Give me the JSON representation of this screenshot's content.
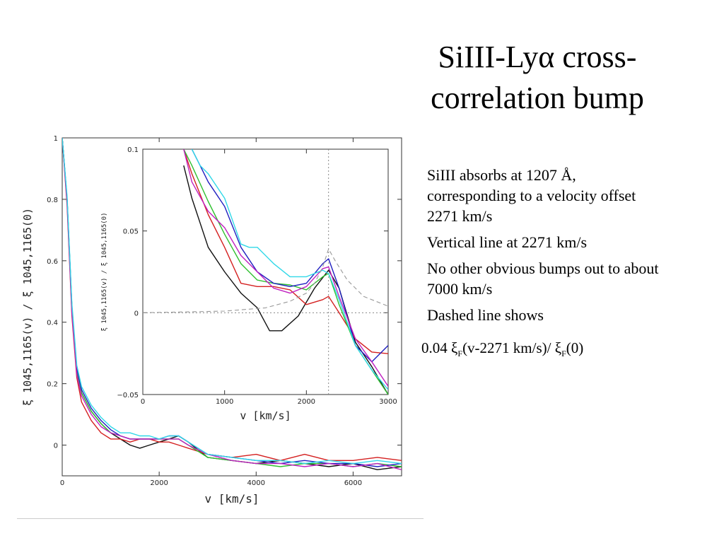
{
  "title_line1": "SiIII-Lyα cross-",
  "title_line2": "correlation bump",
  "bullets": [
    "SiIII absorbs at 1207 Å, corresponding to a velocity offset 2271  km/s",
    "Vertical line at 2271 km/s",
    "No other obvious bumps out to about 7000 km/s",
    "Dashed line shows"
  ],
  "formula": {
    "prefix": "0.04 ξ",
    "sub1": "F",
    "mid": "(v-2271 km/s)/ ξ",
    "sub2": "F",
    "suffix": "(0)"
  },
  "colors": {
    "black": "#111111",
    "red": "#d42020",
    "green": "#30c030",
    "blue": "#2020c0",
    "magenta": "#c020c0",
    "cyan": "#30d8e8",
    "dashed": "#999999"
  },
  "chart_data": [
    {
      "type": "line",
      "panel": "main",
      "xlabel": "v [km/s]",
      "ylabel": "ξ 1045,1165(v)  /  ξ 1045,1165(0)",
      "xlim": [
        0,
        7000
      ],
      "ylim": [
        -0.1,
        1.0
      ],
      "xticks": [
        "0",
        "2000",
        "4000",
        "6000"
      ],
      "yticks": [
        "0",
        "0.2",
        "0.4",
        "0.6",
        "0.8",
        "1"
      ],
      "series": [
        {
          "color": "black",
          "x": [
            0,
            100,
            200,
            300,
            400,
            600,
            800,
            1000,
            1200,
            1400,
            1600,
            1800,
            2000,
            2200,
            2400,
            2600,
            3000,
            3500,
            4000,
            4500,
            5000,
            5500,
            6000,
            6500,
            7000
          ],
          "y": [
            1.0,
            0.8,
            0.45,
            0.25,
            0.17,
            0.11,
            0.07,
            0.04,
            0.02,
            0.0,
            -0.01,
            0.0,
            0.01,
            0.02,
            0.03,
            0.01,
            -0.04,
            -0.05,
            -0.06,
            -0.05,
            -0.06,
            -0.07,
            -0.06,
            -0.08,
            -0.07
          ]
        },
        {
          "color": "red",
          "x": [
            0,
            100,
            200,
            300,
            400,
            600,
            800,
            1000,
            1200,
            1400,
            1600,
            1800,
            2000,
            2200,
            2400,
            2600,
            3000,
            3500,
            4000,
            4500,
            5000,
            5500,
            6000,
            6500,
            7000
          ],
          "y": [
            1.0,
            0.78,
            0.42,
            0.22,
            0.14,
            0.08,
            0.04,
            0.02,
            0.02,
            0.01,
            0.02,
            0.02,
            0.01,
            0.01,
            0.0,
            -0.01,
            -0.03,
            -0.04,
            -0.03,
            -0.05,
            -0.03,
            -0.05,
            -0.05,
            -0.04,
            -0.05
          ]
        },
        {
          "color": "green",
          "x": [
            0,
            100,
            200,
            300,
            400,
            600,
            800,
            1000,
            1200,
            1400,
            1600,
            1800,
            2000,
            2200,
            2400,
            2600,
            3000,
            3500,
            4000,
            4500,
            5000,
            5500,
            6000,
            6500,
            7000
          ],
          "y": [
            1.0,
            0.8,
            0.44,
            0.24,
            0.17,
            0.11,
            0.07,
            0.04,
            0.03,
            0.02,
            0.02,
            0.02,
            0.02,
            0.02,
            0.02,
            0.0,
            -0.04,
            -0.05,
            -0.06,
            -0.07,
            -0.06,
            -0.06,
            -0.07,
            -0.06,
            -0.07
          ]
        },
        {
          "color": "blue",
          "x": [
            0,
            100,
            200,
            300,
            400,
            600,
            800,
            1000,
            1200,
            1400,
            1600,
            1800,
            2000,
            2200,
            2400,
            2600,
            3000,
            3500,
            4000,
            4500,
            5000,
            5500,
            6000,
            6500,
            7000
          ],
          "y": [
            1.0,
            0.8,
            0.45,
            0.25,
            0.18,
            0.12,
            0.08,
            0.05,
            0.03,
            0.02,
            0.02,
            0.02,
            0.02,
            0.03,
            0.03,
            0.01,
            -0.03,
            -0.04,
            -0.05,
            -0.06,
            -0.05,
            -0.06,
            -0.06,
            -0.07,
            -0.06
          ]
        },
        {
          "color": "magenta",
          "x": [
            0,
            100,
            200,
            300,
            400,
            600,
            800,
            1000,
            1200,
            1400,
            1600,
            1800,
            2000,
            2200,
            2400,
            2600,
            3000,
            3500,
            4000,
            4500,
            5000,
            5500,
            6000,
            6500,
            7000
          ],
          "y": [
            1.0,
            0.79,
            0.43,
            0.23,
            0.16,
            0.1,
            0.06,
            0.04,
            0.03,
            0.02,
            0.02,
            0.02,
            0.02,
            0.02,
            0.02,
            0.0,
            -0.03,
            -0.05,
            -0.06,
            -0.06,
            -0.07,
            -0.06,
            -0.07,
            -0.06,
            -0.08
          ]
        },
        {
          "color": "cyan",
          "x": [
            0,
            100,
            200,
            300,
            400,
            600,
            800,
            1000,
            1200,
            1400,
            1600,
            1800,
            2000,
            2200,
            2400,
            2600,
            3000,
            3500,
            4000,
            4500,
            5000,
            5500,
            6000,
            6500,
            7000
          ],
          "y": [
            1.0,
            0.81,
            0.46,
            0.26,
            0.19,
            0.13,
            0.09,
            0.06,
            0.04,
            0.04,
            0.03,
            0.03,
            0.02,
            0.03,
            0.03,
            0.01,
            -0.03,
            -0.04,
            -0.05,
            -0.05,
            -0.06,
            -0.05,
            -0.06,
            -0.05,
            -0.06
          ]
        }
      ]
    },
    {
      "type": "line",
      "panel": "inset",
      "xlabel": "v [km/s]",
      "ylabel": "ξ 1045,1165(v)  /  ξ 1045,1165(0)",
      "xlim": [
        0,
        3000
      ],
      "ylim": [
        -0.05,
        0.1
      ],
      "xticks": [
        "0",
        "1000",
        "2000",
        "3000"
      ],
      "yticks": [
        "−0.05",
        "0",
        "0.05",
        "0.1"
      ],
      "vline_x": 2271,
      "hline_y": 0,
      "series": [
        {
          "color": "black",
          "x": [
            500,
            600,
            800,
            1000,
            1200,
            1400,
            1550,
            1700,
            1900,
            2100,
            2271,
            2400,
            2600,
            2800,
            3000
          ],
          "y": [
            0.09,
            0.07,
            0.04,
            0.025,
            0.012,
            0.003,
            -0.011,
            -0.011,
            -0.002,
            0.015,
            0.026,
            0.015,
            -0.018,
            -0.033,
            -0.05
          ]
        },
        {
          "color": "red",
          "x": [
            500,
            600,
            800,
            1000,
            1200,
            1400,
            1600,
            1800,
            2000,
            2200,
            2271,
            2400,
            2600,
            2800,
            3000
          ],
          "y": [
            0.1,
            0.085,
            0.06,
            0.04,
            0.018,
            0.016,
            0.016,
            0.014,
            0.005,
            0.008,
            0.01,
            0.0,
            -0.016,
            -0.024,
            -0.025
          ]
        },
        {
          "color": "green",
          "x": [
            500,
            600,
            800,
            1000,
            1200,
            1400,
            1600,
            1800,
            2000,
            2200,
            2271,
            2400,
            2600,
            2800,
            3000
          ],
          "y": [
            0.1,
            0.09,
            0.068,
            0.048,
            0.03,
            0.02,
            0.018,
            0.017,
            0.014,
            0.022,
            0.024,
            0.005,
            -0.02,
            -0.035,
            -0.05
          ]
        },
        {
          "color": "blue",
          "x": [
            600,
            700,
            800,
            1000,
            1200,
            1400,
            1600,
            1800,
            2000,
            2200,
            2271,
            2400,
            2600,
            2800,
            3000
          ],
          "y": [
            0.1,
            0.09,
            0.08,
            0.065,
            0.04,
            0.025,
            0.018,
            0.016,
            0.018,
            0.03,
            0.033,
            0.015,
            -0.02,
            -0.03,
            -0.02
          ]
        },
        {
          "color": "magenta",
          "x": [
            500,
            600,
            800,
            1000,
            1200,
            1400,
            1600,
            1800,
            2000,
            2200,
            2271,
            2400,
            2600,
            2800,
            3000
          ],
          "y": [
            0.1,
            0.08,
            0.062,
            0.052,
            0.035,
            0.025,
            0.015,
            0.012,
            0.016,
            0.027,
            0.028,
            0.01,
            -0.016,
            -0.03,
            -0.045
          ]
        },
        {
          "color": "cyan",
          "x": [
            600,
            700,
            800,
            1000,
            1200,
            1300,
            1400,
            1600,
            1800,
            2000,
            2200,
            2271,
            2400,
            2600,
            2800,
            3000
          ],
          "y": [
            0.1,
            0.09,
            0.085,
            0.07,
            0.042,
            0.04,
            0.04,
            0.03,
            0.022,
            0.022,
            0.026,
            0.024,
            0.008,
            -0.02,
            -0.035,
            -0.047
          ]
        },
        {
          "color": "dashed",
          "x": [
            0,
            500,
            1000,
            1500,
            1800,
            2000,
            2100,
            2200,
            2271,
            2350,
            2500,
            2700,
            3000
          ],
          "y": [
            0.0,
            0.0005,
            0.001,
            0.003,
            0.007,
            0.012,
            0.018,
            0.028,
            0.039,
            0.032,
            0.02,
            0.01,
            0.004
          ]
        }
      ]
    }
  ]
}
